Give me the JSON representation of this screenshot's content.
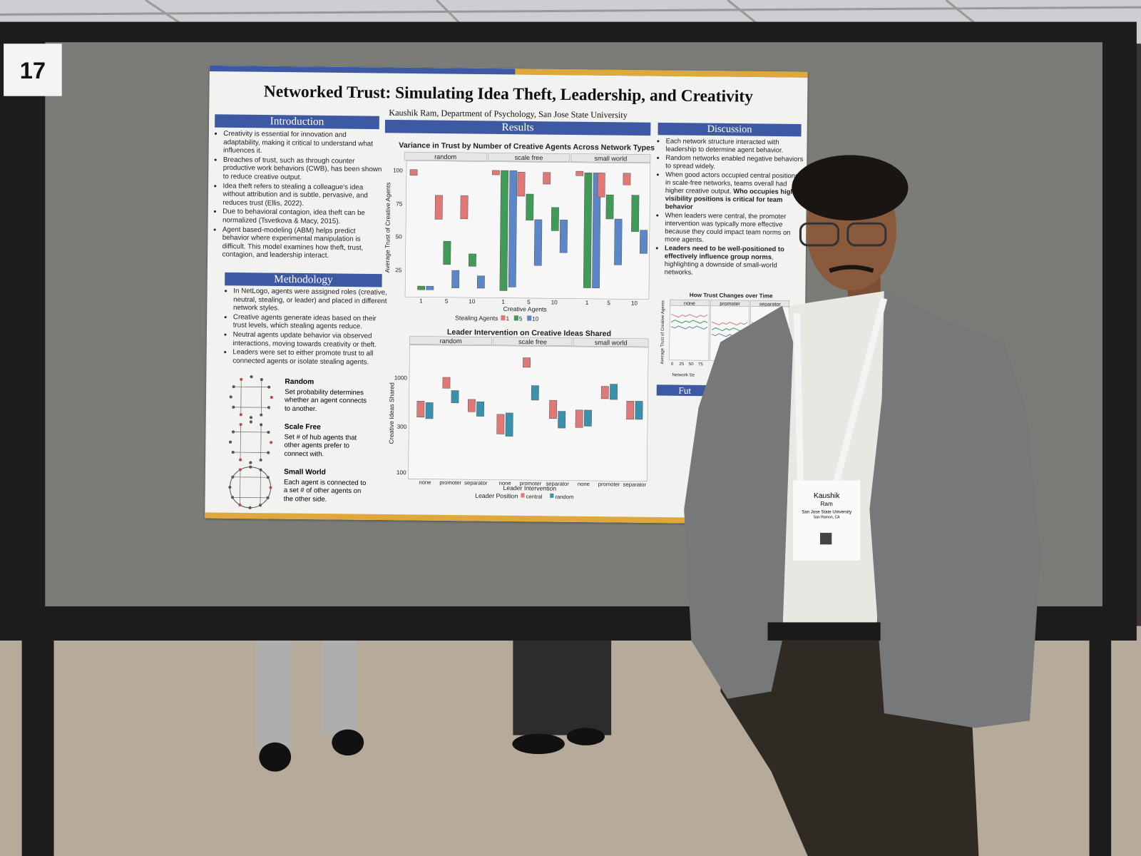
{
  "board_number": "17",
  "poster": {
    "title": "Networked Trust: Simulating Idea Theft, Leadership, and Creativity",
    "author": "Kaushik Ram, Department of Psychology, San Jose State University",
    "introduction": {
      "heading": "Introduction",
      "bullets": [
        "Creativity is essential for innovation and adaptability, making it critical to understand what influences it.",
        "Breaches of trust, such as through counter productive work behaviors (CWB), has been shown to reduce creative output.",
        "Idea theft refers to stealing a colleague's idea without attribution and is subtle, pervasive, and reduces trust (Ellis, 2022).",
        "Due to behavioral contagion, idea theft can be normalized (Tsvetkova & Macy, 2015).",
        "Agent based-modeling (ABM) helps predict behavior where experimental manipulation is difficult. This model examines how theft, trust, contagion, and leadership interact."
      ]
    },
    "methodology": {
      "heading": "Methodology",
      "bullets": [
        "In NetLogo, agents were assigned roles (creative, neutral, stealing, or leader) and placed in different network styles.",
        "Creative agents generate ideas based on their trust levels, which stealing agents reduce.",
        "Neutral agents update behavior via observed interactions, moving towards creativity or theft.",
        "Leaders were set to either promote trust to all connected agents or isolate stealing agents."
      ],
      "networks": [
        {
          "name": "Random",
          "description": "Set probability determines whether an agent connects to another."
        },
        {
          "name": "Scale Free",
          "description": "Set # of hub agents that other agents prefer to connect with."
        },
        {
          "name": "Small World",
          "description": "Each agent is connected to a set # of other agents on the other side."
        }
      ]
    },
    "results": {
      "heading": "Results",
      "trust_chart": {
        "title": "Variance in Trust by Number of Creative Agents Across Network Types",
        "facets": [
          "random",
          "scale free",
          "small world"
        ],
        "y_label": "Average Trust of Creative Agents",
        "y_ticks": [
          100,
          75,
          50,
          25
        ],
        "x_ticks": [
          1,
          5,
          10
        ],
        "x_label": "Creative Agents",
        "legend_title": "Stealing Agents",
        "legend_items": [
          "1",
          "5",
          "10"
        ],
        "colors": [
          "#e07878",
          "#3f9b57",
          "#5b86c8"
        ]
      },
      "ideas_chart": {
        "title": "Leader Intervention on Creative Ideas Shared",
        "facets": [
          "random",
          "scale free",
          "small world"
        ],
        "y_label": "Creative Ideas Shared",
        "y_ticks": [
          1000,
          300,
          100
        ],
        "x_ticks": [
          "none",
          "promoter",
          "separator"
        ],
        "x_label": "Leader Intervention",
        "legend_title": "Leader Position",
        "legend_items": [
          "central",
          "random"
        ],
        "colors": [
          "#e07878",
          "#3a91ad"
        ]
      }
    },
    "discussion": {
      "heading": "Discussion",
      "bullets": [
        [
          {
            "text": "Each network structure interacted with leadership to determine agent behavior.",
            "bold": false
          }
        ],
        [
          {
            "text": "Random networks enabled negative behaviors to spread widely.",
            "bold": false
          }
        ],
        [
          {
            "text": "When good actors occupied central positions in scale-free networks, teams overall had higher creative output. ",
            "bold": false
          },
          {
            "text": "Who occupies high visibility positions is critical for team behavior",
            "bold": true
          }
        ],
        [
          {
            "text": "When leaders were central, the promoter intervention was typically more effective because they could impact team norms on more agents.",
            "bold": false
          }
        ],
        [
          {
            "text": "Leaders need to be well-positioned to effectively influence group norms",
            "bold": true
          },
          {
            "text": ", highlighting a downside of small-world networks.",
            "bold": false
          }
        ]
      ],
      "chart": {
        "title": "How Trust Changes over Time",
        "facets": [
          "none",
          "promoter",
          "separator"
        ],
        "y_label": "Average Trust of Creative Agents",
        "x_ticks": [
          0,
          25,
          50,
          75
        ],
        "x_label": "Network Se"
      }
    },
    "future": {
      "heading": "Fut"
    }
  },
  "badge": {
    "first_name": "Kaushik",
    "last_name": "Ram",
    "school": "San Jose State University",
    "city": "San Ramon, CA"
  }
}
